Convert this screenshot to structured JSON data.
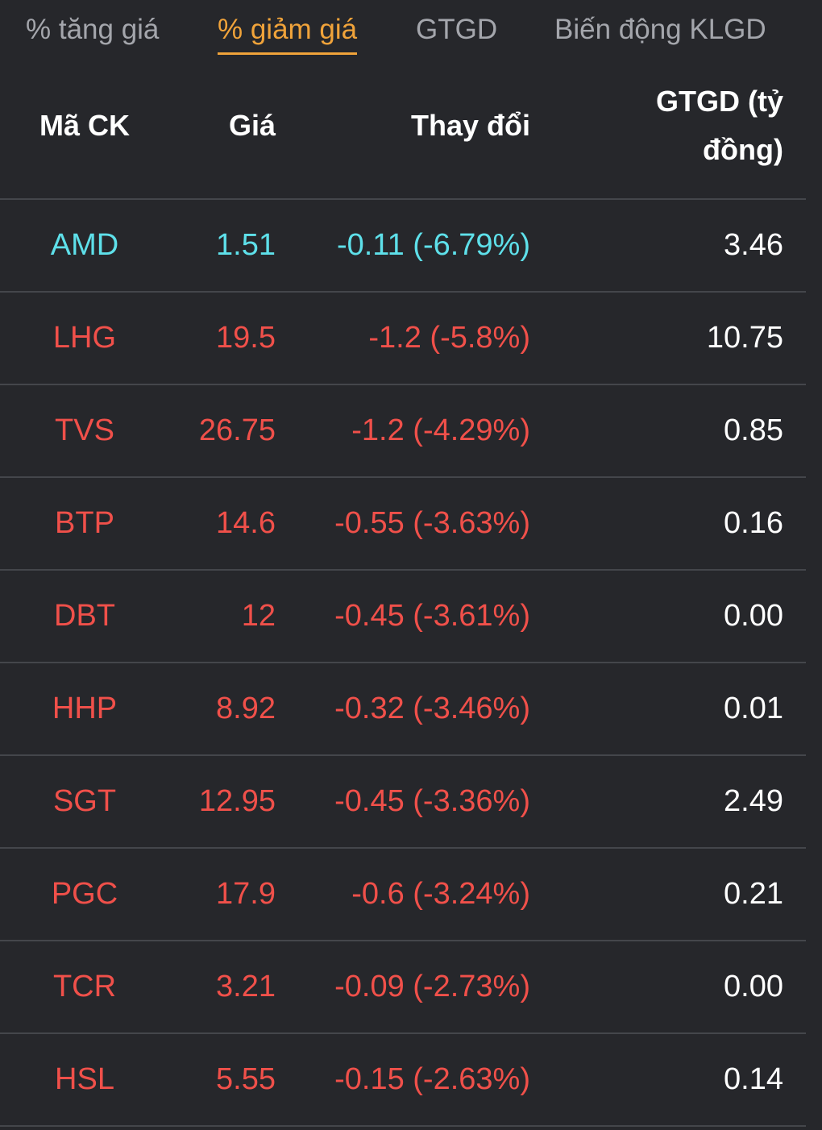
{
  "tabs": [
    {
      "label": "% tăng giá",
      "active": false
    },
    {
      "label": "% giảm giá",
      "active": true
    },
    {
      "label": "GTGD",
      "active": false
    },
    {
      "label": "Biến động KLGD",
      "active": false
    }
  ],
  "colors": {
    "background": "#26272b",
    "active_tab": "#f0a33a",
    "floor": "#5ee0ea",
    "down": "#f0504a",
    "text": "#ffffff",
    "inactive_tab": "#a4a6ac"
  },
  "table": {
    "headers": {
      "symbol": "Mã CK",
      "price": "Giá",
      "change": "Thay đổi",
      "value": "GTGD (tỷ đồng)"
    },
    "rows": [
      {
        "symbol": "AMD",
        "price": "1.51",
        "change": "-0.11 (-6.79%)",
        "value": "3.46",
        "status": "floor"
      },
      {
        "symbol": "LHG",
        "price": "19.5",
        "change": "-1.2 (-5.8%)",
        "value": "10.75",
        "status": "down"
      },
      {
        "symbol": "TVS",
        "price": "26.75",
        "change": "-1.2 (-4.29%)",
        "value": "0.85",
        "status": "down"
      },
      {
        "symbol": "BTP",
        "price": "14.6",
        "change": "-0.55 (-3.63%)",
        "value": "0.16",
        "status": "down"
      },
      {
        "symbol": "DBT",
        "price": "12",
        "change": "-0.45 (-3.61%)",
        "value": "0.00",
        "status": "down"
      },
      {
        "symbol": "HHP",
        "price": "8.92",
        "change": "-0.32 (-3.46%)",
        "value": "0.01",
        "status": "down"
      },
      {
        "symbol": "SGT",
        "price": "12.95",
        "change": "-0.45 (-3.36%)",
        "value": "2.49",
        "status": "down"
      },
      {
        "symbol": "PGC",
        "price": "17.9",
        "change": "-0.6 (-3.24%)",
        "value": "0.21",
        "status": "down"
      },
      {
        "symbol": "TCR",
        "price": "3.21",
        "change": "-0.09 (-2.73%)",
        "value": "0.00",
        "status": "down"
      },
      {
        "symbol": "HSL",
        "price": "5.55",
        "change": "-0.15 (-2.63%)",
        "value": "0.14",
        "status": "down"
      }
    ]
  }
}
